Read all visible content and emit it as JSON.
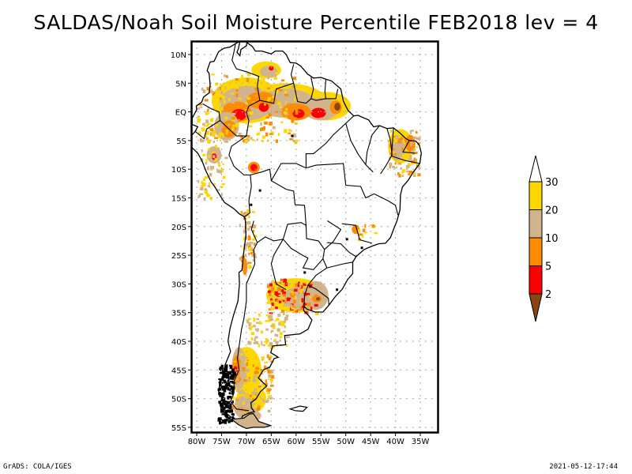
{
  "title": "SALDAS/Noah Soil Moisture Percentile FEB2018 lev = 4",
  "footer": {
    "left": "GrADS: COLA/IGES",
    "right": "2021-05-12-17:44"
  },
  "map": {
    "region": "South America",
    "lon_range": [
      -81,
      -31
    ],
    "lat_range": [
      12,
      -56
    ],
    "lat_ticks": [
      "10N",
      "5N",
      "EQ",
      "5S",
      "10S",
      "15S",
      "20S",
      "25S",
      "30S",
      "35S",
      "40S",
      "45S",
      "50S",
      "55S"
    ],
    "lat_values": [
      10,
      5,
      0,
      -5,
      -10,
      -15,
      -20,
      -25,
      -30,
      -35,
      -40,
      -45,
      -50,
      -55
    ],
    "lon_ticks": [
      "80W",
      "75W",
      "70W",
      "65W",
      "60W",
      "55W",
      "50W",
      "45W",
      "40W",
      "35W"
    ],
    "lon_values": [
      -80,
      -75,
      -70,
      -65,
      -60,
      -55,
      -50,
      -45,
      -40,
      -35
    ],
    "gridlines": true
  },
  "colorbar": {
    "labels": [
      "2",
      "5",
      "10",
      "20",
      "30"
    ],
    "levels": [
      {
        "range": "<2",
        "color": "#8B4513"
      },
      {
        "range": "2-5",
        "color": "#FF0000"
      },
      {
        "range": "5-10",
        "color": "#FF8C00"
      },
      {
        "range": "10-20",
        "color": "#D2B48C"
      },
      {
        "range": "20-30",
        "color": "#FFD700"
      },
      {
        "range": ">30",
        "color": "#FFFFFF"
      }
    ]
  },
  "colors": {
    "dark_brown": "#8B4513",
    "red": "#FF0000",
    "orange": "#FF8C00",
    "tan": "#D2B48C",
    "gold": "#FFD700"
  }
}
